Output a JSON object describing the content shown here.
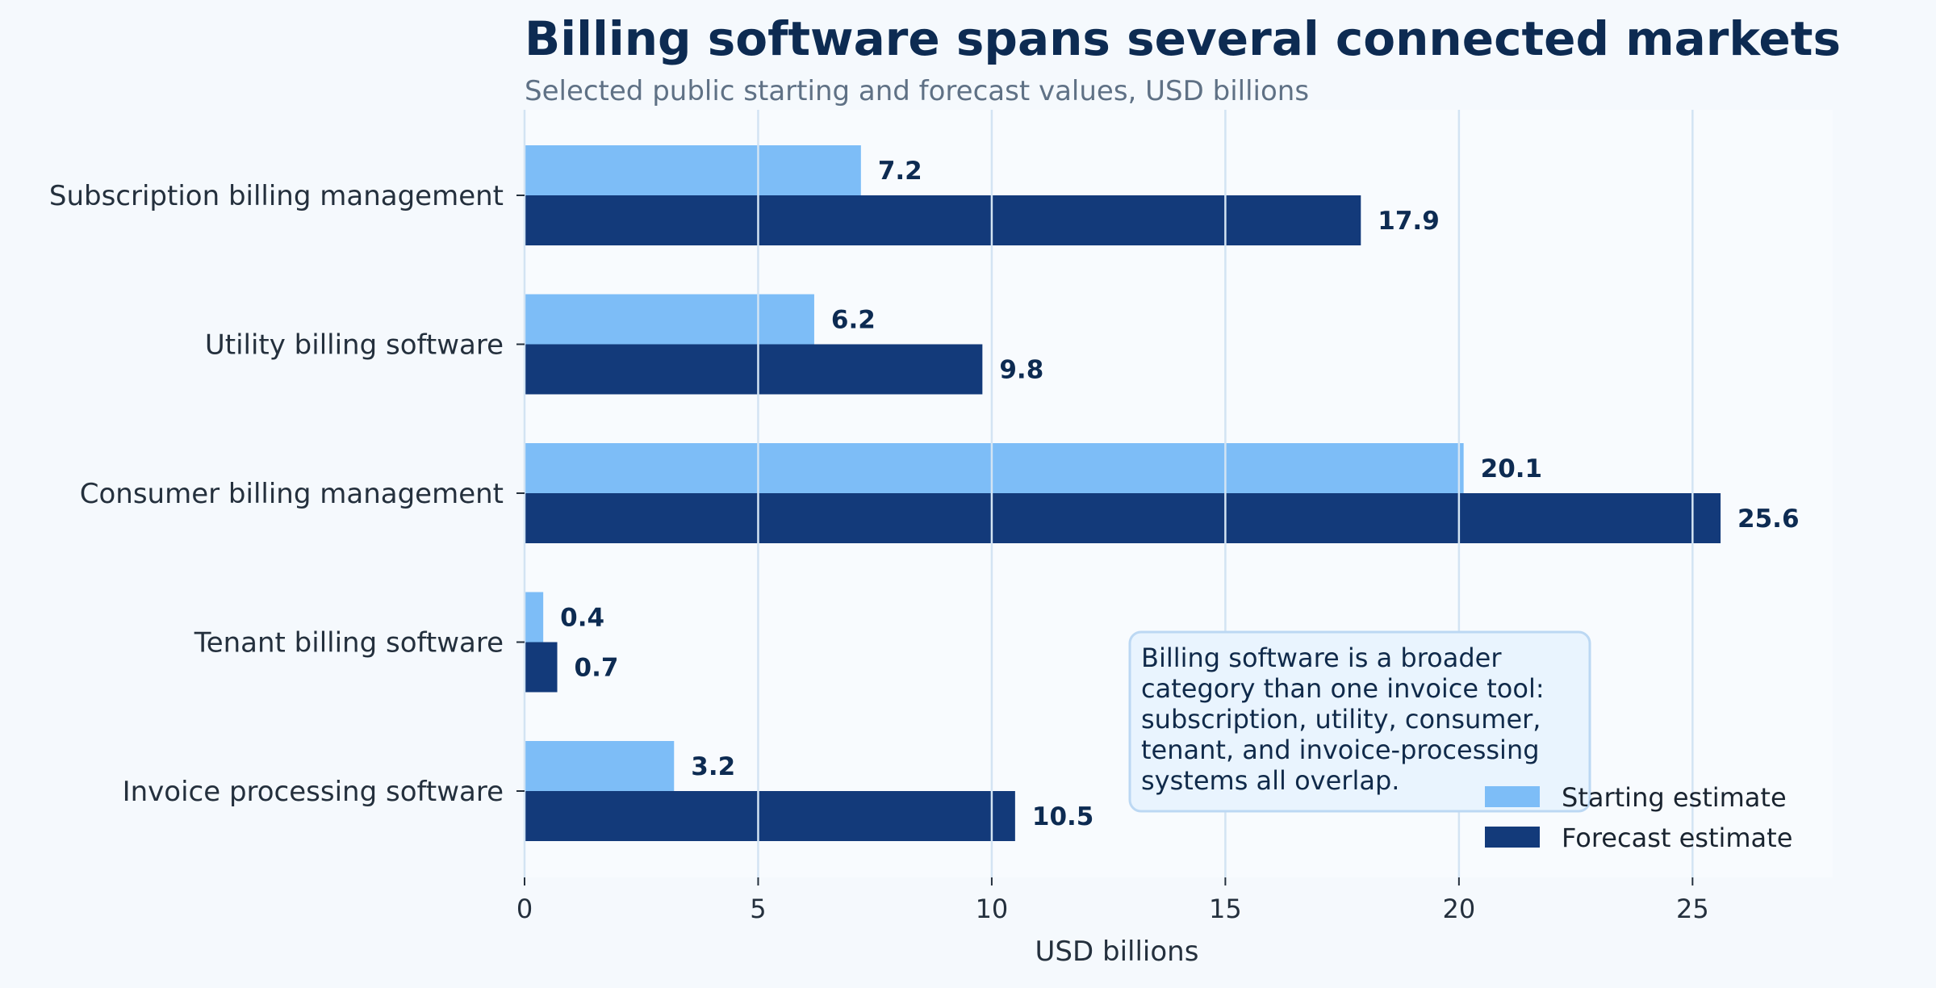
{
  "chart_data": {
    "type": "bar",
    "orientation": "horizontal",
    "title": "Billing software spans several connected markets",
    "subtitle": "Selected public starting and forecast values, USD billions",
    "xlabel": "USD billions",
    "ylabel": "",
    "xlim": [
      0,
      28
    ],
    "xticks": [
      0,
      5,
      10,
      15,
      20,
      25
    ],
    "grid": "vertical",
    "categories": [
      "Subscription billing management",
      "Utility billing software",
      "Consumer billing management",
      "Tenant billing software",
      "Invoice processing software"
    ],
    "series": [
      {
        "name": "Starting estimate",
        "color": "#7dbdf7",
        "values": [
          7.2,
          6.2,
          20.1,
          0.4,
          3.2
        ],
        "labels": [
          "7.2",
          "6.2",
          "20.1",
          "0.4",
          "3.2"
        ]
      },
      {
        "name": "Forecast estimate",
        "color": "#133a7a",
        "values": [
          17.9,
          9.8,
          25.6,
          0.7,
          10.5
        ],
        "labels": [
          "17.9",
          "9.8",
          "25.6",
          "0.7",
          "10.5"
        ]
      }
    ],
    "legend": "bottom-right",
    "annotation": [
      "Billing software is a broader",
      "category than one invoice tool:",
      "subscription, utility, consumer,",
      "tenant, and invoice-processing",
      "systems all overlap."
    ]
  }
}
